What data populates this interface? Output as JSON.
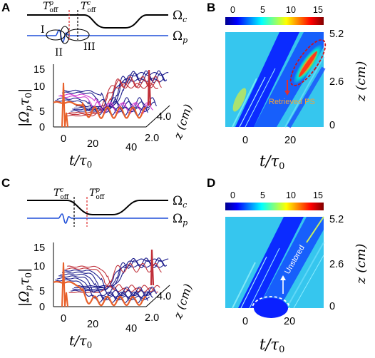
{
  "figure": {
    "panels": {
      "A": {
        "letter": "A",
        "Toff_p": "Tᵒᶠᶠ p",
        "Toff_p_main": "T",
        "Toff_p_sub": "off",
        "Toff_p_sup": "p",
        "Toff_c_main": "T",
        "Toff_c_sub": "off",
        "Toff_c_sup": "c",
        "omega_c": "Ω",
        "omega_c_sub": "c",
        "omega_p": "Ω",
        "omega_p_sub": "p",
        "region_I": "I",
        "region_II": "II",
        "region_III": "III",
        "ylabel": "|Ωₚτ₀|",
        "ylabel_main": "|Ω",
        "ylabel_sub": "p",
        "ylabel_tau": "τ",
        "ylabel_zero": "0",
        "ylabel_end": "|",
        "xlabel_main": "t/τ",
        "xlabel_sub": "0",
        "zlabel": "z (cm)",
        "yticks": [
          "0",
          "5",
          "10",
          "15"
        ],
        "xticks": [
          "0",
          "20",
          "40"
        ],
        "zticks": [
          "2.0",
          "4.0"
        ]
      },
      "B": {
        "letter": "B",
        "colorbar_ticks": [
          "0",
          "5",
          "10",
          "15"
        ],
        "yticks_right": [
          "0",
          "2.6",
          "5.2"
        ],
        "xticks": [
          "0",
          "20"
        ],
        "ylabel": "z (cm)",
        "xlabel_main": "t/τ",
        "xlabel_sub": "0",
        "annotation": "Retrieved PS"
      },
      "C": {
        "letter": "C",
        "Toff_c_main": "T",
        "Toff_c_sub": "off",
        "Toff_c_sup": "c",
        "Toff_p_main": "T",
        "Toff_p_sub": "off",
        "Toff_p_sup": "p",
        "omega_c": "Ω",
        "omega_c_sub": "c",
        "omega_p": "Ω",
        "omega_p_sub": "p",
        "ylabel_main": "|Ω",
        "ylabel_sub": "p",
        "ylabel_tau": "τ",
        "ylabel_zero": "0",
        "ylabel_end": "|",
        "xlabel_main": "t/τ",
        "xlabel_sub": "0",
        "zlabel": "z (cm)",
        "yticks": [
          "0",
          "5",
          "10",
          "15"
        ],
        "xticks": [
          "0",
          "20",
          "40"
        ],
        "zticks": [
          "2.0",
          "4.0"
        ]
      },
      "D": {
        "letter": "D",
        "colorbar_ticks": [
          "0",
          "5",
          "10",
          "15"
        ],
        "yticks_right": [
          "0",
          "2.6",
          "5.2"
        ],
        "xticks": [
          "0",
          "20"
        ],
        "ylabel": "z (cm)",
        "xlabel_main": "t/τ",
        "xlabel_sub": "0",
        "annotation": "Unstored"
      }
    },
    "colors": {
      "control": "#000000",
      "probe": "#1f4fd8",
      "waterfall_front": "#1c1c8c",
      "waterfall_mid": "#c0303a",
      "waterfall_magenta": "#d03cd0",
      "front_trace": "#e8602a",
      "guide_red": "#e03030",
      "retrieved_annotation": "#f2a23a"
    }
  }
}
